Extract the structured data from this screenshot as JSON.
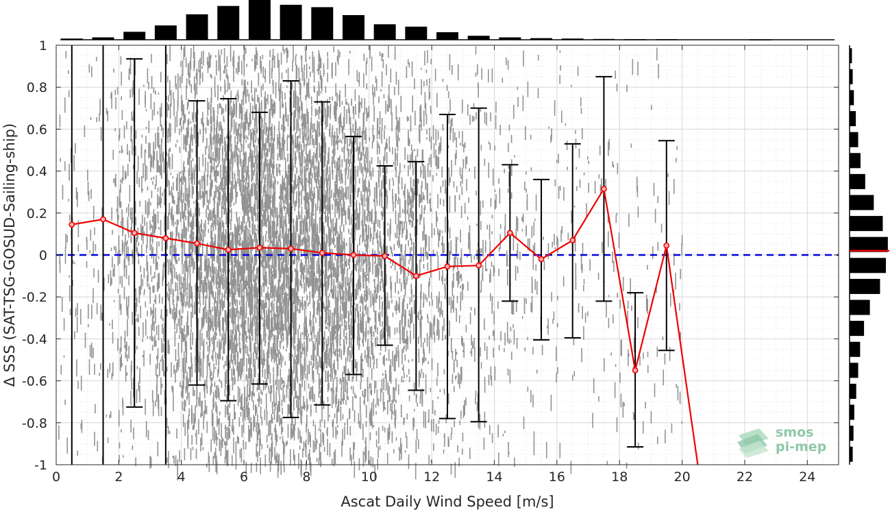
{
  "chart_data": {
    "type": "scatter",
    "xlabel": "Ascat Daily Wind Speed [m/s]",
    "ylabel": "Δ SSS (SAT-TSG-GOSUD-Sailing-ship)",
    "xlim": [
      0,
      25
    ],
    "ylim": [
      -1,
      1
    ],
    "xticks": [
      0,
      2,
      4,
      6,
      8,
      10,
      12,
      14,
      16,
      18,
      20,
      22,
      24
    ],
    "yticks": [
      -1,
      -0.8,
      -0.6,
      -0.4,
      -0.2,
      0,
      0.2,
      0.4,
      0.6,
      0.8,
      1
    ],
    "ytick_labels": [
      "-1",
      "-0.8",
      "-0.6",
      "-0.4",
      "-0.2",
      "0",
      "0.2",
      "0.4",
      "0.6",
      "0.8",
      "1"
    ],
    "grid": true,
    "zero_line": {
      "y": 0,
      "color": "#0000dd",
      "style": "dashed"
    },
    "scatter_color": "#808080",
    "mean_series": {
      "color": "#ee0000",
      "x": [
        0.5,
        1.5,
        2.5,
        3.5,
        4.5,
        5.5,
        6.5,
        7.5,
        8.5,
        9.5,
        10.5,
        11.5,
        12.5,
        13.5,
        14.5,
        15.5,
        16.5,
        17.5,
        18.5,
        19.5,
        20.5
      ],
      "y": [
        0.145,
        0.17,
        0.105,
        0.08,
        0.055,
        0.025,
        0.035,
        0.03,
        0.01,
        0.0,
        -0.005,
        -0.1,
        -0.055,
        -0.05,
        0.105,
        -0.02,
        0.07,
        0.315,
        -0.55,
        0.045,
        -1.0
      ]
    },
    "error_bars": {
      "color": "#000000",
      "x": [
        0.5,
        1.5,
        2.5,
        3.5,
        4.5,
        5.5,
        6.5,
        7.5,
        8.5,
        9.5,
        10.5,
        11.5,
        12.5,
        13.5,
        14.5,
        15.5,
        16.5,
        17.5,
        18.5,
        19.5
      ],
      "lower": [
        -1.0,
        -1.0,
        -0.725,
        -1.0,
        -0.62,
        -0.695,
        -0.615,
        -0.775,
        -0.715,
        -0.57,
        -0.43,
        -0.645,
        -0.78,
        -0.795,
        -0.22,
        -0.405,
        -0.395,
        -0.22,
        -0.915,
        -0.455
      ],
      "upper": [
        1.0,
        1.0,
        0.935,
        1.0,
        0.735,
        0.745,
        0.68,
        0.83,
        0.73,
        0.565,
        0.425,
        0.445,
        0.67,
        0.7,
        0.43,
        0.36,
        0.53,
        0.85,
        -0.18,
        0.545
      ]
    },
    "top_histogram": {
      "x": [
        0.5,
        1.5,
        2.5,
        3.5,
        4.5,
        5.5,
        6.5,
        7.5,
        8.5,
        9.5,
        10.5,
        11.5,
        12.5,
        13.5,
        14.5,
        15.5,
        16.5,
        17.5,
        18.5,
        19.5,
        22.5
      ],
      "values": [
        0.03,
        0.06,
        0.2,
        0.36,
        0.64,
        0.85,
        1.0,
        0.88,
        0.82,
        0.62,
        0.39,
        0.33,
        0.19,
        0.1,
        0.06,
        0.04,
        0.03,
        0.02,
        0.015,
        0.015,
        0.01
      ]
    },
    "right_histogram": {
      "y": [
        -0.95,
        -0.85,
        -0.75,
        -0.65,
        -0.55,
        -0.45,
        -0.35,
        -0.25,
        -0.15,
        -0.05,
        0.05,
        0.15,
        0.25,
        0.35,
        0.45,
        0.55,
        0.65,
        0.75,
        0.85,
        0.95
      ],
      "values": [
        0.08,
        0.1,
        0.12,
        0.17,
        0.22,
        0.27,
        0.37,
        0.52,
        0.78,
        0.93,
        0.98,
        0.85,
        0.62,
        0.4,
        0.28,
        0.22,
        0.16,
        0.11,
        0.08,
        0.06
      ],
      "mean_marker": 0.02,
      "mean_color": "#ee0000"
    }
  },
  "logo": {
    "line1": "smos",
    "line2": "pi-mep"
  }
}
